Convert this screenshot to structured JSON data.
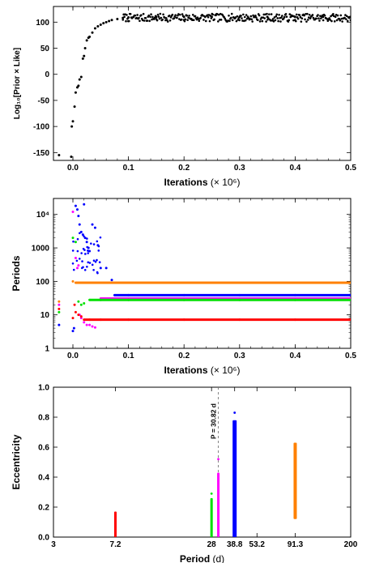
{
  "chart_data": [
    {
      "type": "scatter",
      "xlabel": "Iterations",
      "xunit": "(× 10⁶)",
      "ylabel": "Log₁₀[Prior × Like]",
      "xlim": [
        -0.035,
        0.5
      ],
      "ylim": [
        -165,
        130
      ],
      "xticks": [
        0.0,
        0.1,
        0.2,
        0.3,
        0.4,
        0.5
      ],
      "yticks": [
        -150,
        -100,
        -50,
        0,
        50,
        100
      ],
      "grid": false,
      "series": [
        {
          "color": "#000000",
          "x": [
            -0.025,
            -0.003,
            -0.002,
            0.0,
            0.003,
            0.005,
            0.008,
            0.01,
            0.012,
            0.015,
            0.018,
            0.02,
            0.022,
            0.025,
            0.028,
            0.03,
            0.035,
            0.04,
            0.045,
            0.05,
            0.055,
            0.06,
            0.065,
            0.07,
            0.08,
            0.09,
            0.1,
            0.15,
            0.2,
            0.25,
            0.3,
            0.35,
            0.4,
            0.45,
            0.5
          ],
          "y": [
            -155,
            -158,
            -100,
            -90,
            -62,
            -35,
            -25,
            -22,
            -10,
            -5,
            30,
            35,
            50,
            65,
            70,
            72,
            80,
            88,
            92,
            95,
            98,
            100,
            102,
            104,
            106,
            108,
            109,
            110,
            110,
            110,
            110,
            110,
            110,
            110,
            110
          ]
        }
      ],
      "band": {
        "x_start": 0.09,
        "x_end": 0.5,
        "y_low": 101,
        "y_high": 116
      }
    },
    {
      "type": "scatter",
      "xlabel": "Iterations",
      "xunit": "(× 10⁶)",
      "ylabel": "Periods",
      "yscale": "log",
      "xlim": [
        -0.035,
        0.5
      ],
      "ylim": [
        1,
        30000
      ],
      "xticks": [
        0.0,
        0.1,
        0.2,
        0.3,
        0.4,
        0.5
      ],
      "yticks": [
        1,
        10,
        100,
        1000,
        10000
      ],
      "ytick_labels": [
        "1",
        "10",
        "100",
        "1000",
        "10⁴"
      ],
      "grid": false,
      "series": [
        {
          "color": "#ff8000",
          "x": [
            -0.025,
            0.0,
            0.005,
            0.01,
            0.02,
            0.05,
            0.1,
            0.2,
            0.3,
            0.4,
            0.5
          ],
          "y": [
            25,
            100,
            91.3,
            91.3,
            91.3,
            91.3,
            91.3,
            91.3,
            91.3,
            91.3,
            91.3
          ]
        },
        {
          "color": "#0000ff",
          "x": [
            -0.025,
            0.0,
            0.002,
            0.005,
            0.008,
            0.01,
            0.012,
            0.015,
            0.018,
            0.02,
            0.022,
            0.025,
            0.028,
            0.03,
            0.035,
            0.04,
            0.045,
            0.05,
            0.06,
            0.07,
            0.075,
            0.1,
            0.2,
            0.3,
            0.4,
            0.5
          ],
          "y": [
            5,
            3.3,
            4,
            18000,
            14000,
            9000,
            5000,
            3000,
            2500,
            20000,
            2000,
            1500,
            1000,
            800,
            5000,
            4000,
            1200,
            250,
            250,
            110,
            38.8,
            38.8,
            38.8,
            38.8,
            38.8,
            38.8
          ]
        },
        {
          "color": "#ff00ff",
          "x": [
            -0.025,
            0.0,
            0.005,
            0.008,
            0.01,
            0.012,
            0.015,
            0.02,
            0.025,
            0.03,
            0.035,
            0.04,
            0.05,
            0.1,
            0.2,
            0.3,
            0.4,
            0.5
          ],
          "y": [
            20,
            12000,
            500,
            250,
            300,
            10,
            8,
            6,
            5,
            5,
            4.5,
            4.2,
            30.82,
            30.82,
            30.82,
            30.82,
            30.82,
            30.82
          ]
        },
        {
          "color": "#00e000",
          "x": [
            -0.025,
            0.0,
            0.005,
            0.01,
            0.015,
            0.02,
            0.03,
            0.05,
            0.1,
            0.2,
            0.3,
            0.4,
            0.5
          ],
          "y": [
            12,
            2000,
            1500,
            25,
            20,
            22,
            28,
            28,
            28,
            28,
            28,
            28,
            28
          ]
        },
        {
          "color": "#ff0000",
          "x": [
            -0.025,
            0.0,
            0.003,
            0.005,
            0.01,
            0.015,
            0.02,
            0.03,
            0.05,
            0.1,
            0.2,
            0.3,
            0.4,
            0.5
          ],
          "y": [
            15,
            8,
            20,
            12,
            10,
            9,
            7.2,
            7.2,
            7.2,
            7.2,
            7.2,
            7.2,
            7.2,
            7.2
          ]
        }
      ]
    },
    {
      "type": "scatter",
      "xlabel": "Period",
      "xunit": "(d)",
      "ylabel": "Eccentricity",
      "xscale": "log",
      "xlim": [
        3,
        200
      ],
      "ylim": [
        0.0,
        1.0
      ],
      "xticks": [
        3,
        7.2,
        28,
        38.8,
        53.2,
        91.3,
        200
      ],
      "xtick_labels": [
        "3",
        "7.2",
        "28",
        "38.8",
        "53.2",
        "91.3",
        "200"
      ],
      "yticks": [
        0.0,
        0.2,
        0.4,
        0.6,
        0.8,
        1.0
      ],
      "ytick_labels": [
        "0.0",
        "0.2",
        "0.4",
        "0.6",
        "0.8",
        "1.0"
      ],
      "grid": false,
      "annotation": {
        "text": "P = 30.82 d",
        "x": 30.82
      },
      "series": [
        {
          "color": "#ff0000",
          "period": 7.2,
          "e_min": 0.0,
          "e_max": 0.17
        },
        {
          "color": "#00e000",
          "period": 28,
          "e_min": 0.0,
          "e_max": 0.26
        },
        {
          "color": "#ff00ff",
          "period": 30.82,
          "e_min": 0.0,
          "e_max": 0.43
        },
        {
          "color": "#0000ff",
          "period": 38.8,
          "e_min": 0.0,
          "e_max": 0.78
        },
        {
          "color": "#ff8000",
          "period": 91.3,
          "e_min": 0.12,
          "e_max": 0.63
        }
      ],
      "outliers": [
        {
          "color": "#00e000",
          "period": 28,
          "e": 0.29
        },
        {
          "color": "#ff00ff",
          "period": 30.82,
          "e": 0.52
        },
        {
          "color": "#0000ff",
          "period": 38.8,
          "e": 0.83
        }
      ]
    }
  ]
}
